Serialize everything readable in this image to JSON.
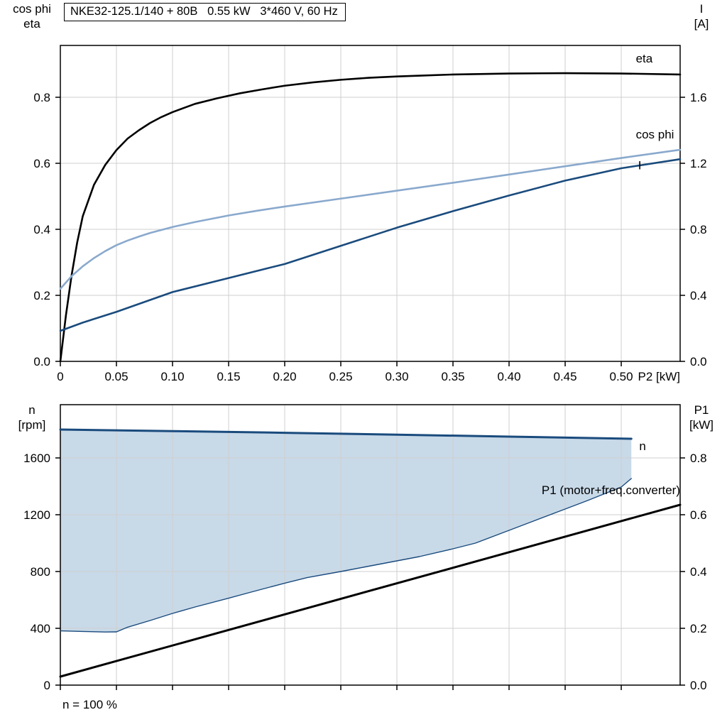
{
  "header": {
    "title": "NKE32-125.1/140 + 80B   0.55 kW   3*460 V, 60 Hz"
  },
  "footer": {
    "note": "n = 100 %"
  },
  "colors": {
    "black": "#000000",
    "light_blue": "#8AA9CD",
    "dark_blue": "#1A4B7D",
    "band_fill": "#C8D9E8",
    "grid": "#CFCFCF"
  },
  "chart_data": [
    {
      "id": "top",
      "type": "line",
      "title": "NKE32-125.1/140 + 80B   0.55 kW   3*460 V, 60 Hz",
      "grid": true,
      "x_axis": {
        "label": "P2 [kW]",
        "min": 0,
        "max": 0.5525,
        "tick_values": [
          0,
          0.05,
          0.1,
          0.15,
          0.2,
          0.25,
          0.3,
          0.35,
          0.4,
          0.45,
          0.5
        ],
        "tick_labels": [
          "0",
          "0.05",
          "0.10",
          "0.15",
          "0.20",
          "0.25",
          "0.30",
          "0.35",
          "0.40",
          "0.45",
          "0.50"
        ]
      },
      "y_left": {
        "title_lines": [
          "cos phi",
          "eta"
        ],
        "min": 0,
        "max": 0.957,
        "tick_values": [
          0,
          0.2,
          0.4,
          0.6,
          0.8
        ],
        "tick_labels": [
          "0.0",
          "0.2",
          "0.4",
          "0.6",
          "0.8"
        ]
      },
      "y_right": {
        "title_lines": [
          "I",
          "[A]"
        ],
        "min": 0,
        "max": 1.914,
        "tick_values": [
          0,
          0.4,
          0.8,
          1.2,
          1.6
        ],
        "tick_labels": [
          "0.0",
          "0.4",
          "0.8",
          "1.2",
          "1.6"
        ]
      },
      "series": [
        {
          "name": "eta",
          "axis": "left",
          "color": "#000000",
          "width": 2.6,
          "points": [
            [
              0,
              0
            ],
            [
              0.005,
              0.14
            ],
            [
              0.01,
              0.26
            ],
            [
              0.015,
              0.36
            ],
            [
              0.02,
              0.44
            ],
            [
              0.03,
              0.535
            ],
            [
              0.04,
              0.595
            ],
            [
              0.05,
              0.64
            ],
            [
              0.06,
              0.675
            ],
            [
              0.07,
              0.7
            ],
            [
              0.08,
              0.722
            ],
            [
              0.09,
              0.74
            ],
            [
              0.1,
              0.755
            ],
            [
              0.12,
              0.78
            ],
            [
              0.14,
              0.797
            ],
            [
              0.16,
              0.812
            ],
            [
              0.18,
              0.824
            ],
            [
              0.2,
              0.835
            ],
            [
              0.225,
              0.845
            ],
            [
              0.25,
              0.853
            ],
            [
              0.275,
              0.859
            ],
            [
              0.3,
              0.863
            ],
            [
              0.325,
              0.866
            ],
            [
              0.35,
              0.869
            ],
            [
              0.4,
              0.872
            ],
            [
              0.45,
              0.873
            ],
            [
              0.5,
              0.872
            ],
            [
              0.5525,
              0.869
            ]
          ]
        },
        {
          "name": "cos phi",
          "axis": "left",
          "color": "#8AA9CD",
          "width": 2.6,
          "points": [
            [
              0,
              0.22
            ],
            [
              0.01,
              0.258
            ],
            [
              0.02,
              0.288
            ],
            [
              0.03,
              0.313
            ],
            [
              0.04,
              0.334
            ],
            [
              0.05,
              0.352
            ],
            [
              0.06,
              0.366
            ],
            [
              0.07,
              0.378
            ],
            [
              0.08,
              0.389
            ],
            [
              0.1,
              0.407
            ],
            [
              0.12,
              0.422
            ],
            [
              0.15,
              0.442
            ],
            [
              0.175,
              0.456
            ],
            [
              0.2,
              0.469
            ],
            [
              0.25,
              0.493
            ],
            [
              0.3,
              0.517
            ],
            [
              0.35,
              0.541
            ],
            [
              0.4,
              0.566
            ],
            [
              0.45,
              0.591
            ],
            [
              0.5,
              0.616
            ],
            [
              0.5525,
              0.641
            ]
          ]
        },
        {
          "name": "I",
          "axis": "right",
          "color": "#1A4B7D",
          "width": 2.6,
          "points": [
            [
              0,
              0.185
            ],
            [
              0.02,
              0.235
            ],
            [
              0.05,
              0.3
            ],
            [
              0.1,
              0.42
            ],
            [
              0.15,
              0.505
            ],
            [
              0.2,
              0.59
            ],
            [
              0.25,
              0.7
            ],
            [
              0.3,
              0.81
            ],
            [
              0.35,
              0.91
            ],
            [
              0.4,
              1.005
            ],
            [
              0.45,
              1.095
            ],
            [
              0.5,
              1.17
            ],
            [
              0.5525,
              1.225
            ]
          ]
        }
      ],
      "annotations": [
        {
          "text": "eta",
          "x": 0.513,
          "y": 0.905,
          "color": "#000000",
          "anchor": "start"
        },
        {
          "text": "cos phi",
          "x": 0.513,
          "y": 0.675,
          "color": "#8AA9CD",
          "anchor": "start"
        },
        {
          "text": "I",
          "x": 0.515,
          "y": 0.582,
          "color": "#1A4B7D",
          "anchor": "start"
        }
      ]
    },
    {
      "id": "bottom",
      "type": "line",
      "title": "",
      "grid": true,
      "x_axis": {
        "label": "",
        "min": 0,
        "max": 0.5525,
        "tick_values": [
          0,
          0.05,
          0.1,
          0.15,
          0.2,
          0.25,
          0.3,
          0.35,
          0.4,
          0.45,
          0.5
        ],
        "tick_labels": []
      },
      "y_left": {
        "title_lines": [
          "n",
          "[rpm]"
        ],
        "min": 0,
        "max": 1975,
        "tick_values": [
          0,
          400,
          800,
          1200,
          1600
        ],
        "tick_labels": [
          "0",
          "400",
          "800",
          "1200",
          "1600"
        ]
      },
      "y_right": {
        "title_lines": [
          "P1",
          "[kW]"
        ],
        "min": 0,
        "max": 0.9875,
        "tick_values": [
          0,
          0.2,
          0.4,
          0.6,
          0.8
        ],
        "tick_labels": [
          "0.0",
          "0.2",
          "0.4",
          "0.6",
          "0.8"
        ]
      },
      "band": {
        "upper": "n",
        "lower": "n_lower",
        "color": "#C8D9E8"
      },
      "series": [
        {
          "name": "n_lower",
          "axis": "left",
          "color": "#1A4B7D",
          "width": 1.4,
          "points": [
            [
              0,
              382
            ],
            [
              0.02,
              378
            ],
            [
              0.04,
              374
            ],
            [
              0.05,
              375
            ],
            [
              0.06,
              408
            ],
            [
              0.08,
              455
            ],
            [
              0.1,
              505
            ],
            [
              0.12,
              550
            ],
            [
              0.15,
              612
            ],
            [
              0.17,
              655
            ],
            [
              0.2,
              718
            ],
            [
              0.22,
              757
            ],
            [
              0.25,
              800
            ],
            [
              0.27,
              830
            ],
            [
              0.3,
              875
            ],
            [
              0.32,
              905
            ],
            [
              0.35,
              960
            ],
            [
              0.37,
              1000
            ],
            [
              0.4,
              1090
            ],
            [
              0.42,
              1150
            ],
            [
              0.45,
              1240
            ],
            [
              0.47,
              1300
            ],
            [
              0.5,
              1395
            ],
            [
              0.509,
              1455
            ]
          ]
        },
        {
          "name": "n",
          "axis": "left",
          "color": "#1A4B7D",
          "width": 3,
          "points": [
            [
              0,
              1800
            ],
            [
              0.1,
              1789
            ],
            [
              0.2,
              1777
            ],
            [
              0.3,
              1764
            ],
            [
              0.4,
              1750
            ],
            [
              0.509,
              1735
            ]
          ]
        },
        {
          "name": "P1 (motor+freq.converter)",
          "axis": "right",
          "color": "#000000",
          "width": 3,
          "points": [
            [
              0,
              0.03
            ],
            [
              0.5525,
              0.635
            ]
          ]
        }
      ],
      "annotations": [
        {
          "text": "n",
          "x": 0.516,
          "y": 1655,
          "color": "#1A4B7D",
          "anchor": "start"
        },
        {
          "text": "P1 (motor+freq.converter)",
          "x": 0.5525,
          "y": 1345,
          "color": "#000000",
          "anchor": "end"
        }
      ]
    }
  ]
}
